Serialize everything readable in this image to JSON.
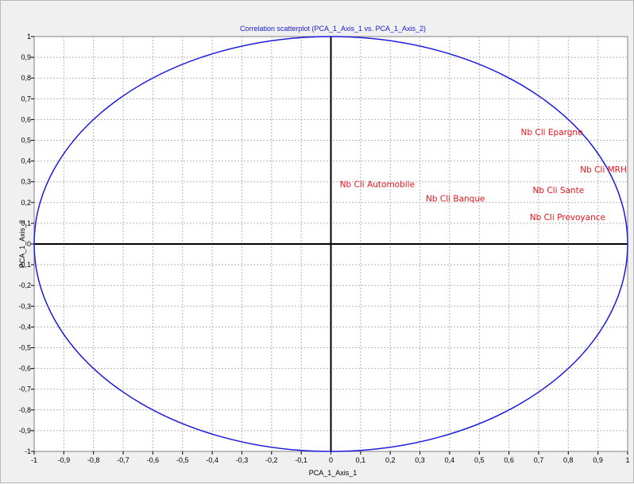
{
  "chart_data": {
    "type": "scatter",
    "title": "Correlation scatterplot (PCA_1_Axis_1 vs. PCA_1_Axis_2)",
    "xlabel": "PCA_1_Axis_1",
    "ylabel": "PCA_1_Axis_2",
    "xlim": [
      -1,
      1
    ],
    "ylim": [
      -1,
      1
    ],
    "grid": true,
    "unit_circle": true,
    "x_ticks": [
      "-1",
      "-0,9",
      "-0,8",
      "-0,7",
      "-0,6",
      "-0,5",
      "-0,4",
      "-0,3",
      "-0,2",
      "-0,1",
      "0",
      "0,1",
      "0,2",
      "0,3",
      "0,4",
      "0,5",
      "0,6",
      "0,7",
      "0,8",
      "0,9",
      "1"
    ],
    "y_ticks": [
      "1",
      "0,9",
      "0,8",
      "0,7",
      "0,6",
      "0,5",
      "0,4",
      "0,3",
      "0,2",
      "0,1",
      "0",
      "-0,1",
      "-0,2",
      "-0,3",
      "-0,4",
      "-0,5",
      "-0,6",
      "-0,7",
      "-0,8",
      "-0,9",
      "-1"
    ],
    "points": [
      {
        "label": "Nb Cli Epargne",
        "x": 0.64,
        "y": 0.54
      },
      {
        "label": "Nb Cli MRH",
        "x": 0.84,
        "y": 0.36
      },
      {
        "label": "Nb Cli Automobile",
        "x": 0.03,
        "y": 0.29
      },
      {
        "label": "Nb Cli Sante",
        "x": 0.68,
        "y": 0.26
      },
      {
        "label": "Nb Cli Banque",
        "x": 0.32,
        "y": 0.22
      },
      {
        "label": "Nb Cli Prevoyance",
        "x": 0.67,
        "y": 0.13
      }
    ]
  },
  "colors": {
    "circle": "#1a1adc",
    "labels": "#e8141b",
    "axes": "#000000",
    "grid": "#b4b4b4"
  }
}
